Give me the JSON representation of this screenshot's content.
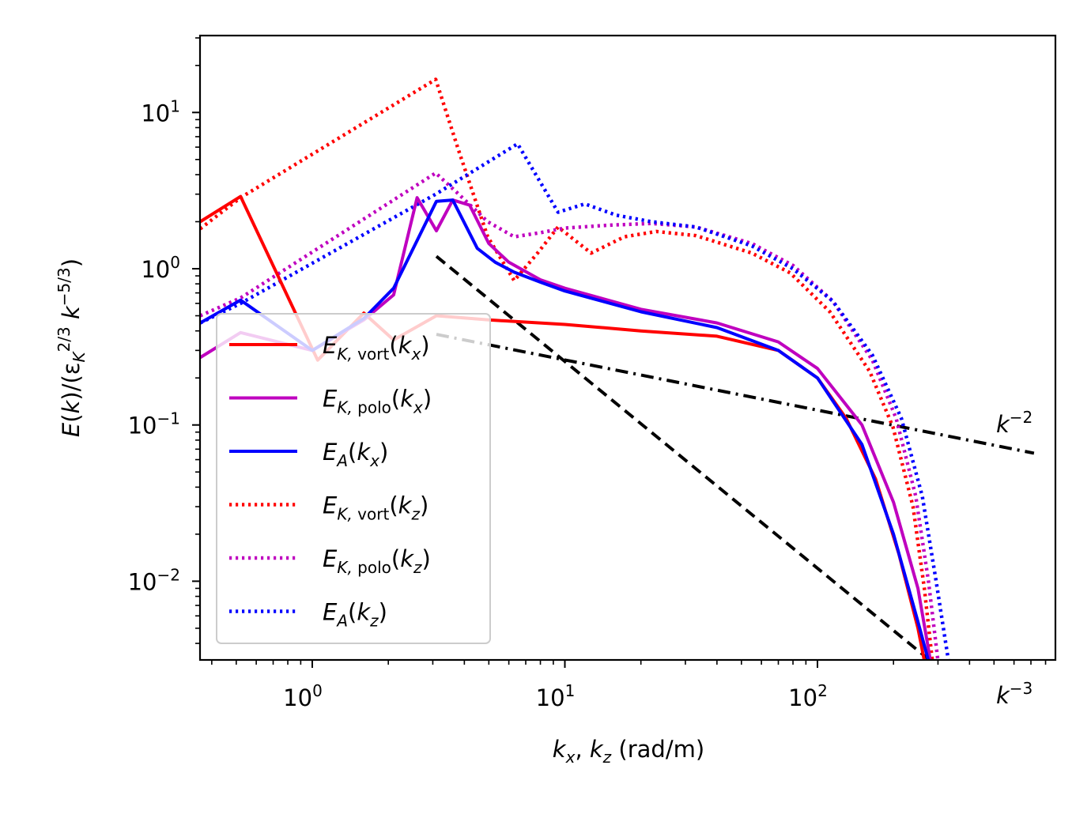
{
  "chart_data": {
    "type": "line",
    "xscale": "log",
    "yscale": "log",
    "xlabel": "k_x, k_z (rad/m)",
    "ylabel": "E(k)/(ε_K^{2/3} k^{-5/3})",
    "xlim": [
      0.36,
      1300
    ],
    "ylim": [
      0.0031,
      30
    ],
    "x_ticks": [
      {
        "value": 1,
        "label_base": "10",
        "label_exp": "0"
      },
      {
        "value": 10,
        "label_base": "10",
        "label_exp": "1"
      },
      {
        "value": 100,
        "label_base": "10",
        "label_exp": "2"
      }
    ],
    "y_ticks": [
      {
        "value": 10,
        "label_base": "10",
        "label_exp": "1"
      },
      {
        "value": 1,
        "label_base": "10",
        "label_exp": "0"
      },
      {
        "value": 0.1,
        "label_base": "10",
        "label_exp": "−1"
      },
      {
        "value": 0.01,
        "label_base": "10",
        "label_exp": "−2"
      }
    ],
    "legend_placement": "lower-left",
    "grid": false,
    "series": [
      {
        "name": "E_K,vort(k_x)",
        "label_main": "E",
        "label_sub": "K, vort",
        "label_arg": "k",
        "label_argsub": "x",
        "color": "#ff0000",
        "style": "solid",
        "x": [
          0.36,
          0.52,
          1.05,
          1.6,
          2.1,
          3.1,
          5,
          10,
          20,
          40,
          70,
          100,
          130,
          170,
          210,
          250,
          265
        ],
        "y": [
          2.0,
          2.9,
          0.26,
          0.52,
          0.35,
          0.5,
          0.47,
          0.44,
          0.4,
          0.37,
          0.3,
          0.2,
          0.11,
          0.045,
          0.015,
          0.005,
          0.0031
        ]
      },
      {
        "name": "E_K,polo(k_x)",
        "label_main": "E",
        "label_sub": "K, polo",
        "label_arg": "k",
        "label_argsub": "x",
        "color": "#bf00bf",
        "style": "solid",
        "x": [
          0.36,
          0.52,
          1.0,
          1.6,
          2.1,
          2.6,
          3.1,
          3.6,
          4.2,
          5,
          6,
          8,
          10,
          20,
          40,
          70,
          100,
          150,
          200,
          250,
          280
        ],
        "y": [
          0.27,
          0.39,
          0.3,
          0.47,
          0.68,
          2.85,
          1.75,
          2.75,
          2.55,
          1.45,
          1.1,
          0.85,
          0.75,
          0.55,
          0.45,
          0.34,
          0.23,
          0.1,
          0.032,
          0.009,
          0.0031
        ]
      },
      {
        "name": "E_A(k_x)",
        "label_main": "E",
        "label_sub": "A",
        "label_arg": "k",
        "label_argsub": "x",
        "color": "#0000ff",
        "style": "solid",
        "x": [
          0.36,
          0.52,
          1.0,
          1.6,
          2.1,
          3.1,
          3.6,
          4.5,
          5.3,
          6.3,
          8,
          10,
          20,
          40,
          70,
          100,
          150,
          200,
          250,
          275
        ],
        "y": [
          0.45,
          0.63,
          0.3,
          0.48,
          0.75,
          2.7,
          2.75,
          1.35,
          1.1,
          0.95,
          0.82,
          0.72,
          0.53,
          0.42,
          0.3,
          0.2,
          0.075,
          0.02,
          0.0055,
          0.0031
        ]
      },
      {
        "name": "E_K,vort(k_z)",
        "label_main": "E",
        "label_sub": "K, vort",
        "label_arg": "k",
        "label_argsub": "z",
        "color": "#ff0000",
        "style": "dotted",
        "x": [
          0.36,
          0.52,
          3.08,
          3.8,
          4.95,
          6.3,
          7.8,
          9.4,
          12.7,
          17.2,
          23,
          33,
          55,
          78,
          112,
          161,
          199,
          239,
          265,
          285
        ],
        "y": [
          1.8,
          2.85,
          16.3,
          5.7,
          1.6,
          0.84,
          1.26,
          1.85,
          1.26,
          1.6,
          1.73,
          1.63,
          1.26,
          0.94,
          0.53,
          0.22,
          0.097,
          0.03,
          0.009,
          0.0031
        ]
      },
      {
        "name": "E_K,polo(k_z)",
        "label_main": "E",
        "label_sub": "K, polo",
        "label_arg": "k",
        "label_argsub": "z",
        "color": "#bf00bf",
        "style": "dotted",
        "x": [
          0.36,
          0.52,
          3.08,
          3.8,
          4.95,
          6.3,
          8,
          10,
          15,
          22,
          33,
          55,
          80,
          115,
          165,
          205,
          245,
          275,
          300
        ],
        "y": [
          0.5,
          0.65,
          4.1,
          3.0,
          2.0,
          1.6,
          1.7,
          1.82,
          1.9,
          1.95,
          1.85,
          1.45,
          1.05,
          0.62,
          0.26,
          0.11,
          0.035,
          0.01,
          0.0031
        ]
      },
      {
        "name": "E_A(k_z)",
        "label_main": "E",
        "label_sub": "A",
        "label_arg": "k",
        "label_argsub": "z",
        "color": "#0000ff",
        "style": "dotted",
        "x": [
          0.36,
          0.52,
          3.08,
          6.5,
          9.4,
          12,
          16,
          22,
          33,
          55,
          80,
          115,
          165,
          215,
          260,
          295,
          330
        ],
        "y": [
          0.45,
          0.6,
          3.0,
          6.3,
          2.3,
          2.6,
          2.2,
          2.0,
          1.85,
          1.4,
          1.0,
          0.62,
          0.28,
          0.11,
          0.035,
          0.01,
          0.0031
        ]
      }
    ],
    "reference_lines": [
      {
        "name": "k^-3",
        "label_base": "k",
        "label_exp": "−3",
        "color": "#000000",
        "style": "dashed",
        "x": [
          3.1,
          280
        ],
        "y": [
          1.2,
          0.0031
        ]
      },
      {
        "name": "k^-2",
        "label_base": "k",
        "label_exp": "−2",
        "color": "#000000",
        "style": "dashdot",
        "x": [
          3.1,
          720
        ],
        "y": [
          0.38,
          0.066
        ]
      }
    ]
  }
}
